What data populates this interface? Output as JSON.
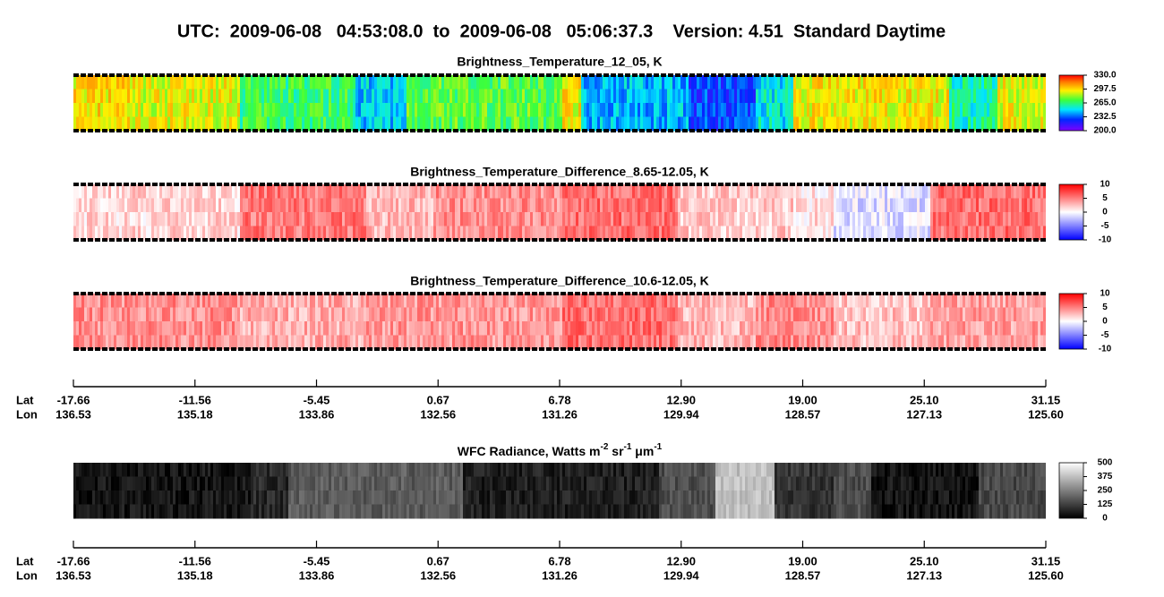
{
  "title": "UTC:  2009-06-08   04:53:08.0  to  2009-06-08   05:06:37.3    Version: 4.51  Standard Daytime",
  "chart_data": [
    {
      "type": "image-strip",
      "title": "Brightness_Temperature_12_05, K",
      "colormap": "rainbow",
      "colorbar": {
        "lim": [
          200,
          330
        ],
        "ticks": [
          {
            "value": 330,
            "label": "330.0"
          },
          {
            "value": 297.5,
            "label": "297.5"
          },
          {
            "value": 265,
            "label": "265.0"
          },
          {
            "value": 232.5,
            "label": "232.5"
          },
          {
            "value": 200,
            "label": "200.0"
          }
        ]
      }
    },
    {
      "type": "image-strip",
      "title": "Brightness_Temperature_Difference_8.65-12.05, K",
      "colormap": "bwr",
      "colorbar": {
        "lim": [
          -10,
          10
        ],
        "ticks": [
          10,
          5,
          0,
          -5,
          -10
        ]
      }
    },
    {
      "type": "image-strip",
      "title": "Brightness_Temperature_Difference_10.6-12.05, K",
      "colormap": "bwr",
      "colorbar": {
        "lim": [
          -10,
          10
        ],
        "ticks": [
          10,
          5,
          0,
          -5,
          -10
        ]
      }
    },
    {
      "type": "image-strip",
      "title_parts": [
        {
          "text": "WFC Radiance, Watts m",
          "sup": false
        },
        {
          "text": "-2",
          "sup": true
        },
        {
          "text": " sr",
          "sup": false
        },
        {
          "text": "-1",
          "sup": true
        },
        {
          "text": " μm",
          "sup": false
        },
        {
          "text": "-1",
          "sup": true
        }
      ],
      "colormap": "gray",
      "colorbar": {
        "lim": [
          0,
          500
        ],
        "ticks": [
          500,
          375,
          250,
          125,
          0
        ]
      }
    }
  ],
  "position_axes": [
    {
      "lat_label": "Lat",
      "lon_label": "Lon",
      "lat": [
        "-17.66",
        "-11.56",
        "-5.45",
        "0.67",
        "6.78",
        "12.90",
        "19.00",
        "25.10",
        "31.15"
      ],
      "lon": [
        "136.53",
        "135.18",
        "133.86",
        "132.56",
        "131.26",
        "129.94",
        "128.57",
        "127.13",
        "125.60"
      ]
    },
    {
      "lat_label": "Lat",
      "lon_label": "Lon",
      "lat": [
        "-17.66",
        "-11.56",
        "-5.45",
        "0.67",
        "6.78",
        "12.90",
        "19.00",
        "25.10",
        "31.15"
      ],
      "lon": [
        "136.53",
        "135.18",
        "133.86",
        "132.56",
        "131.26",
        "129.94",
        "128.57",
        "127.13",
        "125.60"
      ]
    }
  ]
}
